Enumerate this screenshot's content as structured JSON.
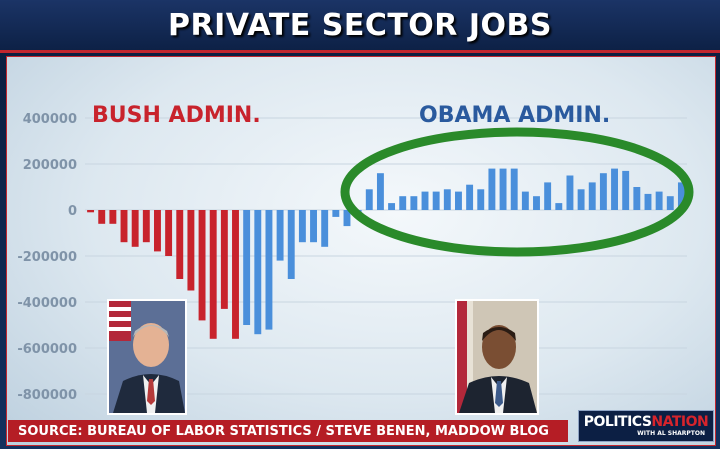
{
  "title": "PRIVATE SECTOR JOBS",
  "source": "SOURCE: BUREAU OF LABOR STATISTICS / STEVE BENEN, MADDOW BLOG",
  "logo": {
    "main": "POLITICS",
    "accent": "NATION",
    "sub": "WITH AL SHARPTON"
  },
  "colors": {
    "bush": "#c8232c",
    "obama": "#4a8fdb",
    "highlight_ring": "#2a8a2a",
    "title_bg": "#0d2146",
    "source_bg": "#b51d25"
  },
  "chart_data": {
    "type": "bar",
    "title": "PRIVATE SECTOR JOBS",
    "ylim": [
      -900000,
      450000
    ],
    "yticks": [
      400000,
      200000,
      0,
      -200000,
      -400000,
      -600000,
      -800000
    ],
    "ytick_labels": [
      "400000",
      "200000",
      "0",
      "-200000",
      "-400000",
      "-600000",
      "-800000"
    ],
    "grid": true,
    "annotations": [
      {
        "text": "BUSH ADMIN.",
        "color": "#c8232c"
      },
      {
        "text": "OBAMA ADMIN.",
        "color": "#2a5a9e"
      }
    ],
    "series": [
      {
        "name": "BUSH ADMIN.",
        "color": "#c8232c",
        "values": [
          -10000,
          -60000,
          -60000,
          -140000,
          -160000,
          -140000,
          -180000,
          -200000,
          -300000,
          -350000,
          -480000,
          -560000,
          -430000,
          -560000
        ]
      },
      {
        "name": "OBAMA ADMIN.",
        "color": "#4a8fdb",
        "values": [
          -500000,
          -540000,
          -520000,
          -220000,
          -300000,
          -140000,
          -140000,
          -160000,
          -30000,
          -70000,
          -20000,
          90000,
          160000,
          30000,
          60000,
          60000,
          80000,
          80000,
          90000,
          80000,
          110000,
          90000,
          180000,
          180000,
          180000,
          80000,
          60000,
          120000,
          30000,
          150000,
          90000,
          120000,
          160000,
          180000,
          170000,
          100000,
          70000,
          80000,
          60000,
          120000
        ]
      }
    ]
  },
  "photos": [
    {
      "name": "bush-portrait",
      "alt": "George W. Bush"
    },
    {
      "name": "obama-portrait",
      "alt": "Barack Obama"
    }
  ]
}
